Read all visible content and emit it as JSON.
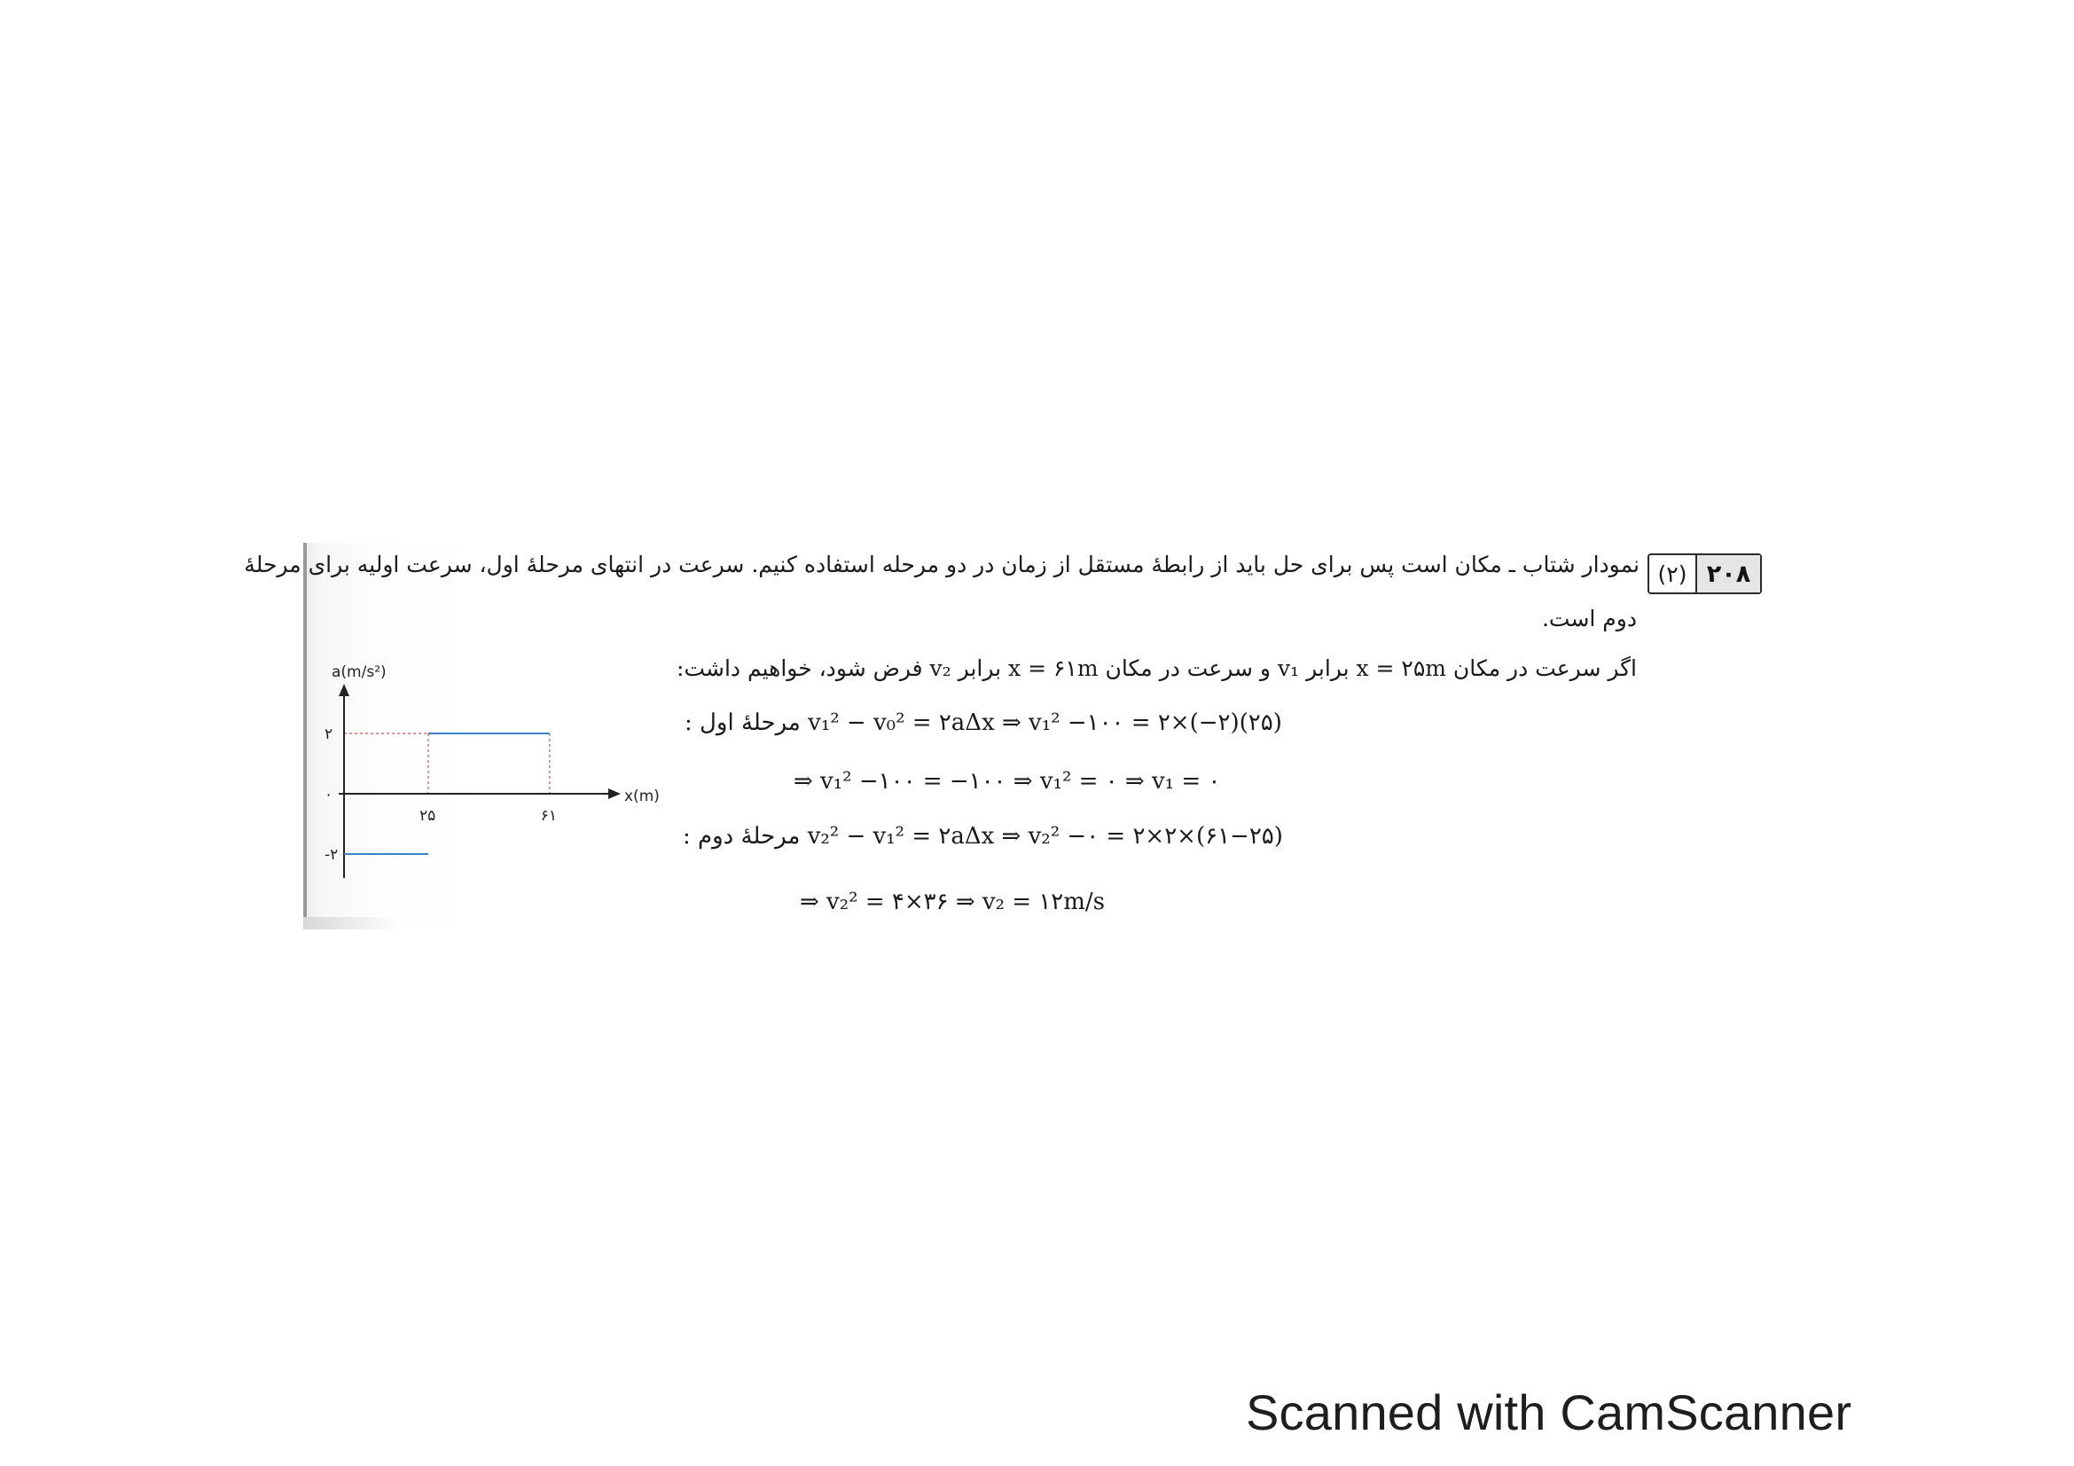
{
  "question": {
    "number": "۲۰۸",
    "option": "(۲)"
  },
  "text": {
    "line1": "نمودار شتاب ـ مکان است پس برای حل باید از رابطهٔ مستقل از زمان در دو مرحله استفاده کنیم. سرعت در انتهای مرحلهٔ اول، سرعت اولیه برای مرحلهٔ",
    "line2": "دوم است.",
    "line3": "اگر سرعت در مکان x = ۲۵m برابر v₁ و سرعت در مکان x = ۶۱m برابر v₂ فرض شود، خواهیم داشت:"
  },
  "equations": {
    "stage1_label": "مرحلهٔ اول :",
    "stage1_formula": "v₁² − v₀² = ۲aΔx  ⇒  v₁² −۱۰۰ = ۲×(−۲)(۲۵)",
    "stage1_result": "⇒  v₁² −۱۰۰ = −۱۰۰  ⇒  v₁² = ۰  ⇒  v₁ = ۰",
    "stage2_label": "مرحلهٔ دوم :",
    "stage2_formula": "v₂² − v₁² = ۲aΔx  ⇒  v₂² −۰ = ۲×۲×(۶۱−۲۵)",
    "stage2_result": "⇒  v₂² = ۴×۳۶  ⇒  v₂ = ۱۲m/s"
  },
  "chart_data": {
    "type": "line",
    "ylabel": "a(m/s²)",
    "xlabel": "x(m)",
    "x_ticks": [
      "۲۵",
      "۶۱"
    ],
    "y_ticks": [
      "۲",
      "۰",
      "-۲"
    ],
    "series": [
      {
        "points": [
          [
            0,
            -2
          ],
          [
            25,
            -2
          ]
        ]
      },
      {
        "points": [
          [
            25,
            2
          ],
          [
            61,
            2
          ]
        ]
      }
    ],
    "guides": [
      [
        25,
        2
      ],
      [
        61,
        2
      ]
    ],
    "xlim": [
      0,
      80
    ],
    "ylim": [
      -2.5,
      3
    ]
  },
  "colors": {
    "series_line": "#3b7fc4",
    "guide_line": "#d07a7a",
    "axis": "#222222"
  },
  "footer": "Scanned with CamScanner"
}
